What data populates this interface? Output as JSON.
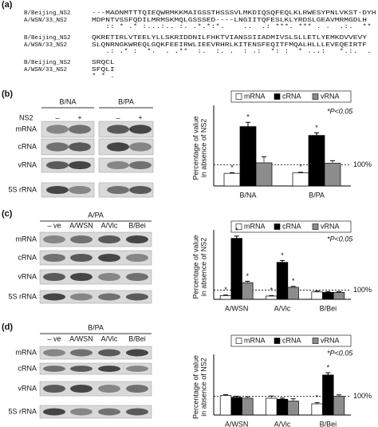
{
  "alignment": {
    "label": "(a)",
    "blocks": [
      {
        "rows": [
          {
            "name": "B/Beijing_NS2",
            "seq": "---MADNMTTTQIEQWRMKKMAIGSSTHSSSVLMKDIQSQFEQLKLRWESYPNLVKST-DYH"
          },
          {
            "name": "A/WSN/33_NS2",
            "seq": "MDPNTVSSFQDILMRMSKMQLGSSSED----LNGIITQFESLKLYRDSLGEAVMRMGDLH"
          }
        ],
        "consensus": "   :: * .* :...:.. :. .*.*:*.    ..  .: ***. *** . .  .:.  **"
      },
      {
        "rows": [
          {
            "name": "B/Beijing_NS2",
            "seq": "QKRETIRLVTEELYLLSKRIDDNILFHKTVIANSSIIADMIVSLSLLETLYEMKDVVEVY"
          },
          {
            "name": "A/WSN/33_NS2",
            "seq": "SLQNRNGKWREQLGQKFEEIRWLIEEVRHRLKITENSFEQITFMQALHLLLEVEQEIRTF"
          }
        ],
        "consensus": "   .: .* :  *.  . .**  :.  :. .  : .:  *: :  * ...:   *.:.  ."
      },
      {
        "rows": [
          {
            "name": "B/Beijing_NS2",
            "seq": "SRQCL"
          },
          {
            "name": "A/WSN/33_NS2",
            "seq": "SFQLI"
          }
        ],
        "consensus": "* * ."
      }
    ]
  },
  "gels": [
    {
      "label": "(b)",
      "lane_header": "NS2",
      "groups": [
        "B/NA",
        "B/PA"
      ],
      "lanes": [
        "–",
        "+",
        "–",
        "+"
      ],
      "rows": [
        "mRNA",
        "cRNA",
        "vRNA",
        "5S rRNA"
      ]
    },
    {
      "label": "(c)",
      "groups": [
        "A/PA"
      ],
      "lanes": [
        "– ve",
        "A/WSN",
        "A/Vic",
        "B/Bei"
      ],
      "rows": [
        "mRNA",
        "cRNA",
        "vRNA",
        "5S rRNA"
      ]
    },
    {
      "label": "(d)",
      "groups": [
        "B/PA"
      ],
      "lanes": [
        "– ve",
        "A/WSN",
        "A/Vic",
        "B/Bei"
      ],
      "rows": [
        "mRNA",
        "cRNA",
        "vRNA",
        "5S rRNA"
      ]
    }
  ],
  "chart_data": [
    {
      "type": "bar",
      "ylabel": [
        "Percentage of value",
        "in absence of NS2"
      ],
      "ylim": [
        0,
        360
      ],
      "categories": [
        "B/NA",
        "B/PA"
      ],
      "marker": "*",
      "annotation": "*P<0.05",
      "reference_line": {
        "value": 100,
        "label": "100%"
      },
      "series": [
        {
          "name": "mRNA",
          "color": "#ffffff",
          "values": [
            60,
            62
          ],
          "errors": [
            3,
            3
          ],
          "significant": [
            true,
            true
          ]
        },
        {
          "name": "cRNA",
          "color": "#000000",
          "values": [
            282,
            240
          ],
          "errors": [
            20,
            12
          ],
          "significant": [
            true,
            true
          ]
        },
        {
          "name": "vRNA",
          "color": "#8c8c8c",
          "values": [
            110,
            108
          ],
          "errors": [
            28,
            12
          ],
          "significant": [
            false,
            false
          ]
        }
      ]
    },
    {
      "type": "bar",
      "ylabel": [
        "Percentage of value",
        "in absence of NS2"
      ],
      "ylim": [
        0,
        700
      ],
      "categories": [
        "A/WSN",
        "A/Vic",
        "B/Bei"
      ],
      "marker": "*",
      "annotation": "*P<0.05",
      "reference_line": {
        "value": 100,
        "label": "100%"
      },
      "series": [
        {
          "name": "mRNA",
          "color": "#ffffff",
          "values": [
            40,
            35,
            80
          ],
          "errors": [
            6,
            5,
            8
          ],
          "significant": [
            true,
            true,
            false
          ]
        },
        {
          "name": "cRNA",
          "color": "#000000",
          "values": [
            660,
            400,
            75
          ],
          "errors": [
            25,
            20,
            8
          ],
          "significant": [
            true,
            true,
            false
          ]
        },
        {
          "name": "vRNA",
          "color": "#8c8c8c",
          "values": [
            180,
            130,
            75
          ],
          "errors": [
            15,
            10,
            8
          ],
          "significant": [
            true,
            true,
            false
          ]
        }
      ]
    },
    {
      "type": "bar",
      "ylabel": [
        "Percentage of value",
        "in absence of NS2"
      ],
      "ylim": [
        0,
        300
      ],
      "categories": [
        "A/WSN",
        "A/Vic",
        "B/Bei"
      ],
      "marker": "*",
      "annotation": "*P<0.05",
      "reference_line": {
        "value": 100,
        "label": "100%"
      },
      "series": [
        {
          "name": "mRNA",
          "color": "#ffffff",
          "values": [
            105,
            90,
            60
          ],
          "errors": [
            4,
            12,
            6
          ],
          "significant": [
            false,
            false,
            true
          ]
        },
        {
          "name": "cRNA",
          "color": "#000000",
          "values": [
            95,
            85,
            215
          ],
          "errors": [
            6,
            6,
            12
          ],
          "significant": [
            false,
            false,
            true
          ]
        },
        {
          "name": "vRNA",
          "color": "#8c8c8c",
          "values": [
            90,
            75,
            100
          ],
          "errors": [
            8,
            12,
            8
          ],
          "significant": [
            false,
            false,
            false
          ]
        }
      ]
    }
  ]
}
